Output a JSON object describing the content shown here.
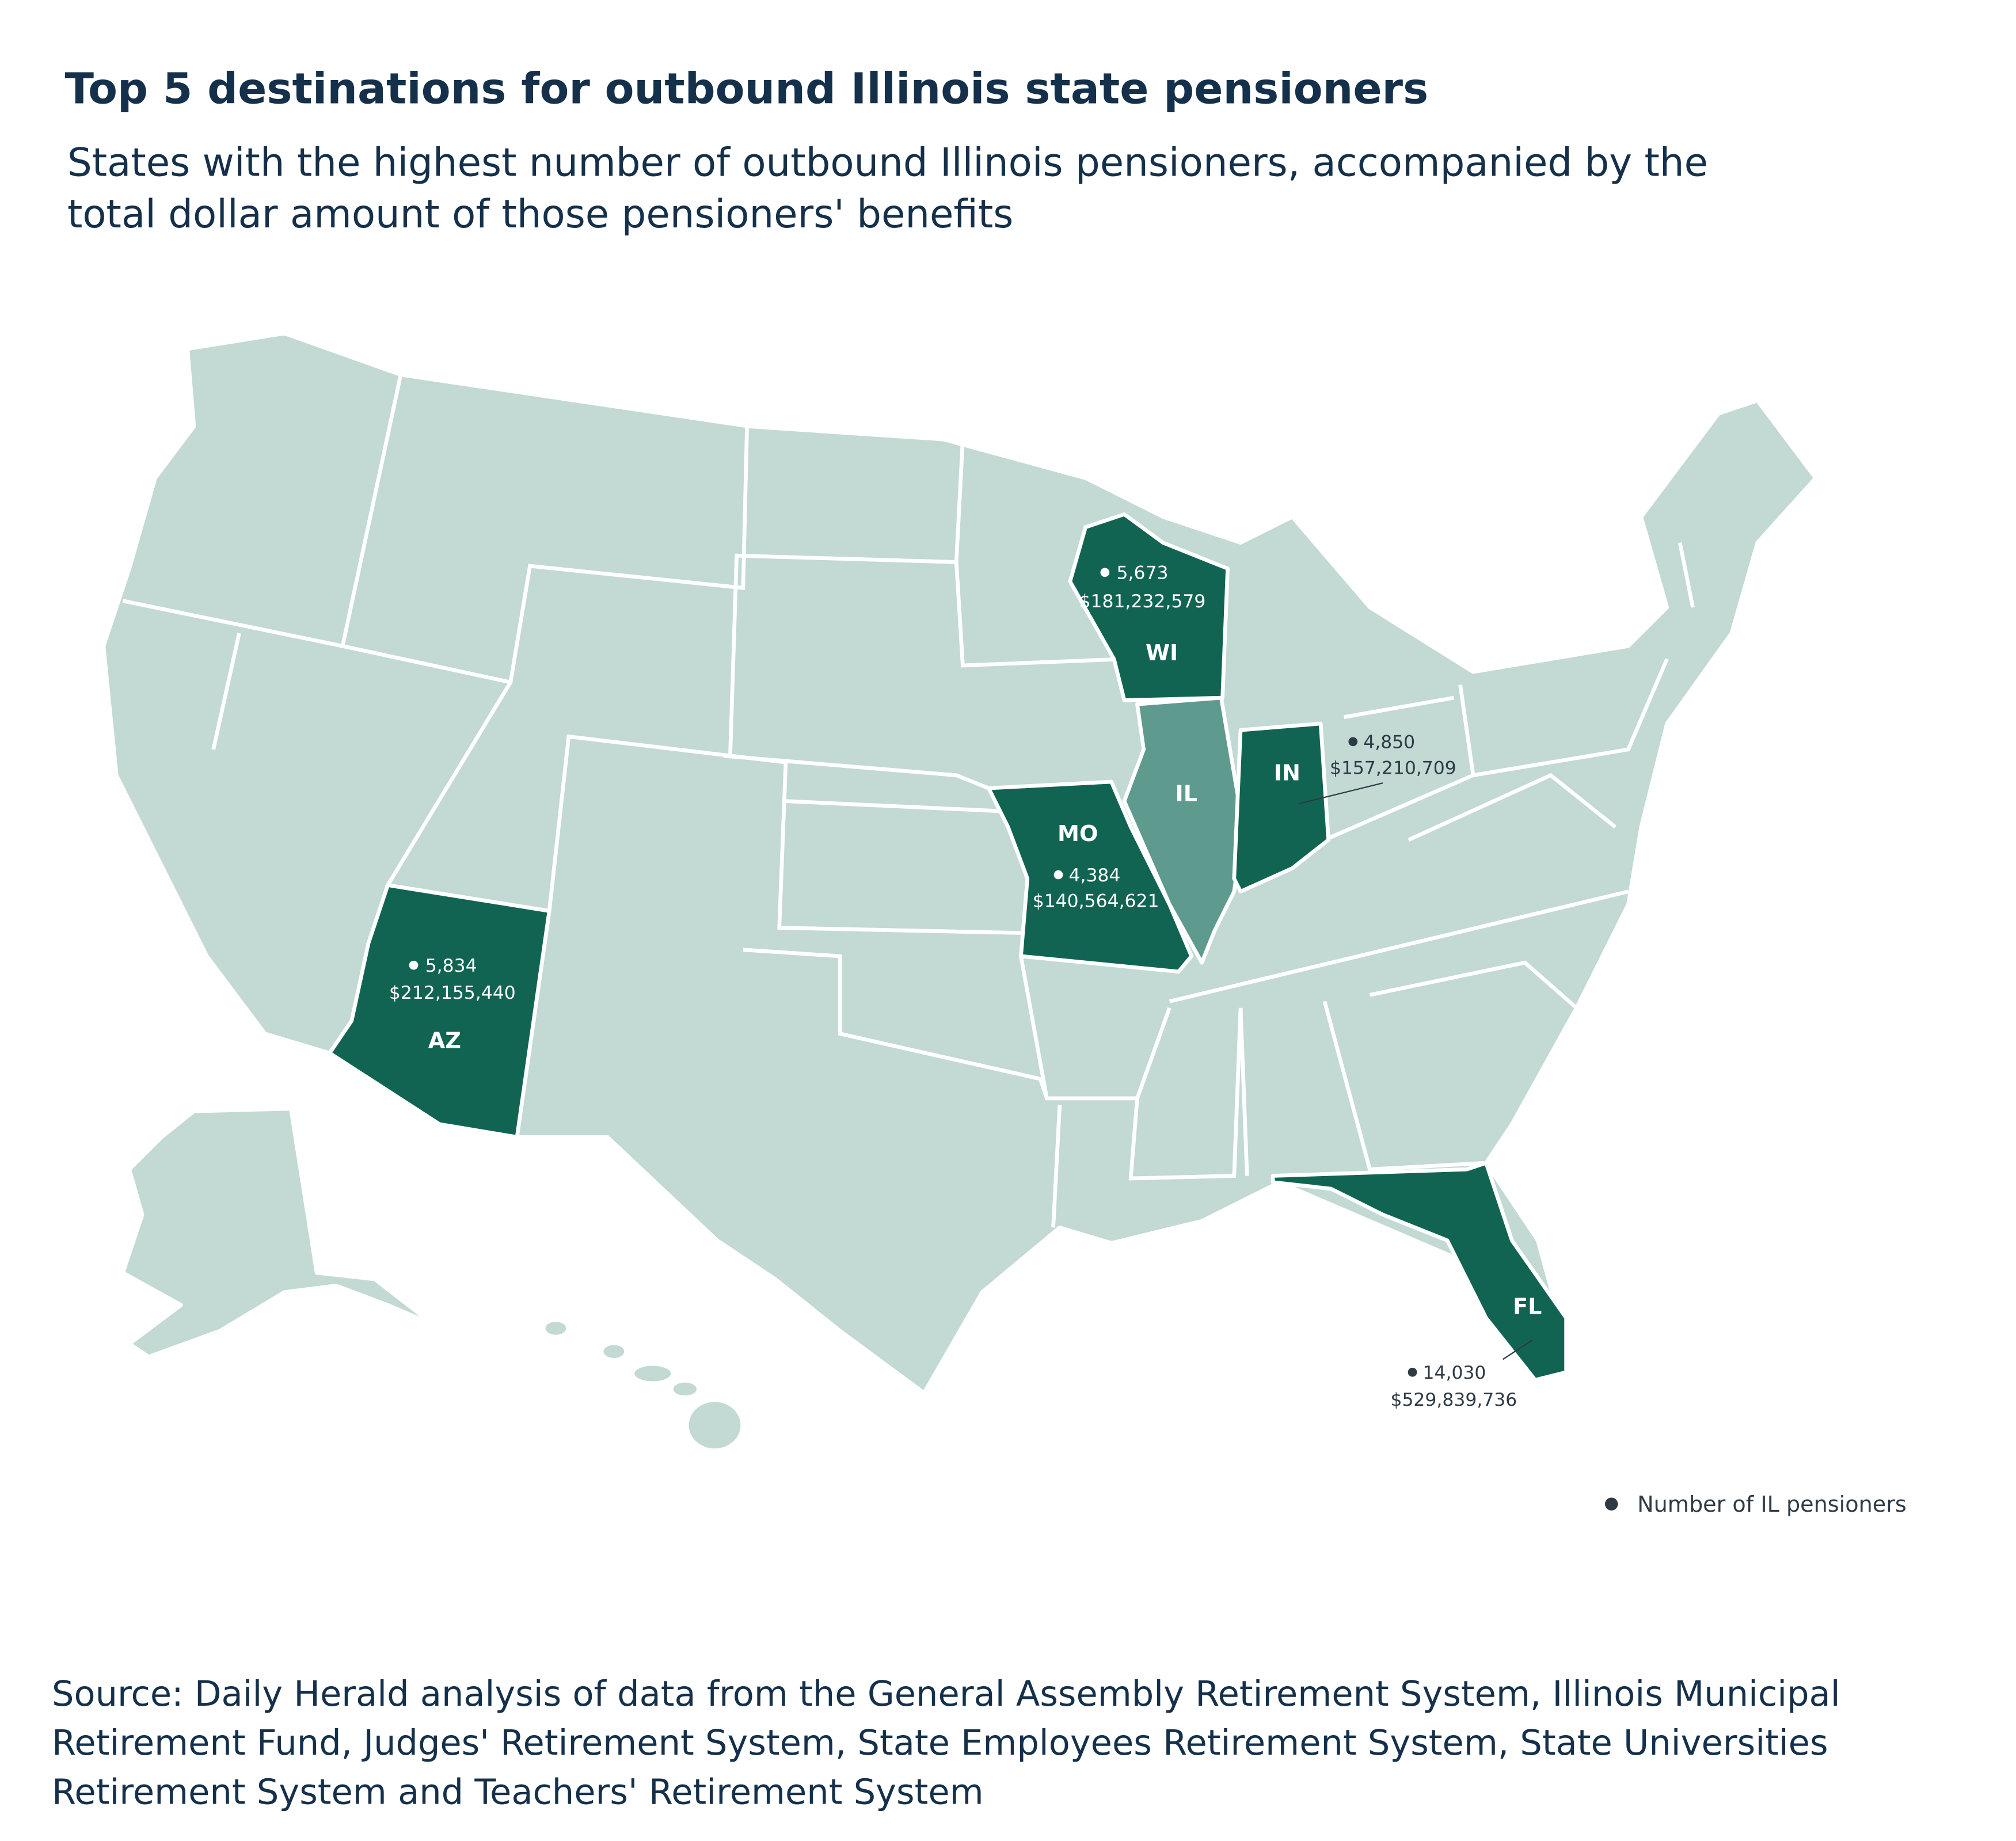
{
  "header": {
    "title": "Top 5 destinations for outbound Illinois state pensioners",
    "subtitle_lines": [
      "States with the highest number of outbound Illinois pensioners, accompanied by the",
      "total dollar amount of those pensioners' benefits"
    ]
  },
  "home_state": "IL",
  "destinations": [
    {
      "state": "WI",
      "pensioners": "5,673",
      "benefits": "$181,232,579"
    },
    {
      "state": "IN",
      "pensioners": "4,850",
      "benefits": "$157,210,709"
    },
    {
      "state": "MO",
      "pensioners": "4,384",
      "benefits": "$140,564,621"
    },
    {
      "state": "AZ",
      "pensioners": "5,834",
      "benefits": "$212,155,440"
    },
    {
      "state": "FL",
      "pensioners": "14,030",
      "benefits": "$529,839,736"
    }
  ],
  "legend": "Number of IL pensioners",
  "source_lines": [
    "Source: Daily Herald analysis of data from the General Assembly Retirement System, Illinois Municipal",
    "Retirement Fund, Judges' Retirement System, State Employees Retirement System, State Universities",
    "Retirement System and Teachers' Retirement System"
  ]
}
